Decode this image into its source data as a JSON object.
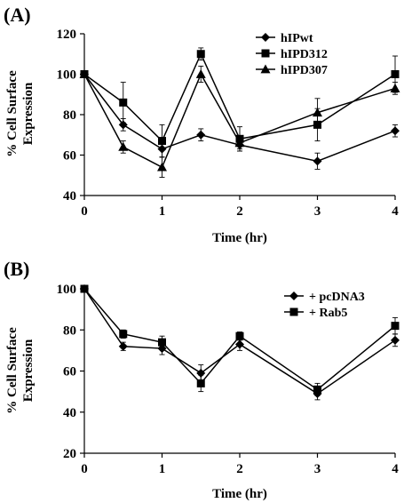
{
  "chart_data": [
    {
      "type": "line",
      "panel_label": "(A)",
      "xlabel": "Time (hr)",
      "ylabel_lines": [
        "% Cell Surface",
        "Expression"
      ],
      "xlim": [
        0,
        4
      ],
      "ylim": [
        40,
        120
      ],
      "xticks": [
        0,
        1,
        2,
        3,
        4
      ],
      "yticks": [
        40,
        60,
        80,
        100,
        120
      ],
      "grid": false,
      "legend": "top-right",
      "series": [
        {
          "name": "hIPwt",
          "marker": "diamond",
          "x": [
            0,
            0.5,
            1,
            1.5,
            2,
            3,
            4
          ],
          "y": [
            100,
            75,
            63,
            70,
            65,
            57,
            72
          ],
          "err": [
            0,
            3,
            4,
            3,
            3,
            4,
            3
          ]
        },
        {
          "name": "hIPD312",
          "marker": "square",
          "x": [
            0,
            0.5,
            1,
            1.5,
            2,
            3,
            4
          ],
          "y": [
            100,
            86,
            67,
            110,
            68,
            75,
            100
          ],
          "err": [
            0,
            10,
            8,
            3,
            6,
            8,
            9
          ]
        },
        {
          "name": "hIPD307",
          "marker": "triangle",
          "x": [
            0,
            0.5,
            1,
            1.5,
            2,
            3,
            4
          ],
          "y": [
            100,
            64,
            54,
            100,
            66,
            81,
            93
          ],
          "err": [
            0,
            3,
            5,
            4,
            3,
            7,
            3
          ]
        }
      ]
    },
    {
      "type": "line",
      "panel_label": "(B)",
      "xlabel": "Time (hr)",
      "ylabel_lines": [
        "% Cell Surface",
        "Expression"
      ],
      "xlim": [
        0,
        4
      ],
      "ylim": [
        20,
        100
      ],
      "xticks": [
        0,
        1,
        2,
        3,
        4
      ],
      "yticks": [
        20,
        40,
        60,
        80,
        100
      ],
      "grid": false,
      "legend": "top-right",
      "series": [
        {
          "name": "+ pcDNA3",
          "marker": "diamond",
          "x": [
            0,
            0.5,
            1,
            1.5,
            2,
            3,
            4
          ],
          "y": [
            100,
            72,
            71,
            59,
            73,
            49,
            75
          ],
          "err": [
            0,
            2,
            3,
            4,
            3,
            3,
            3
          ]
        },
        {
          "name": "+ Rab5",
          "marker": "square",
          "x": [
            0,
            0.5,
            1,
            1.5,
            2,
            3,
            4
          ],
          "y": [
            100,
            78,
            74,
            54,
            77,
            51,
            82
          ],
          "err": [
            0,
            2,
            3,
            4,
            2,
            3,
            4
          ]
        }
      ]
    }
  ]
}
